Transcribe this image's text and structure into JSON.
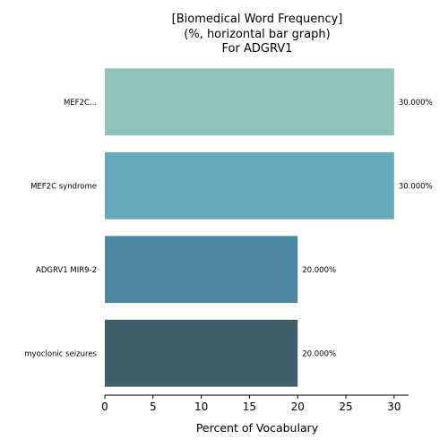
{
  "chart_data": {
    "type": "bar",
    "orientation": "horizontal",
    "title_lines": [
      "[Biomedical Word Frequency]",
      "(%, horizontal bar graph)",
      "For ADGRV1"
    ],
    "categories": [
      "MEF2C...",
      "MEF2C syndrome",
      "ADGRV1 MIR9-2",
      "myoclonic seizures"
    ],
    "values": [
      30,
      30,
      20,
      20
    ],
    "value_labels": [
      "30.000%",
      "30.000%",
      "20.000%",
      "20.000%"
    ],
    "bar_colors": [
      "#8fc2b9",
      "#66a9ba",
      "#4d88a1",
      "#3e5e69"
    ],
    "xlabel": "Percent of Vocabulary",
    "ylabel": "",
    "xlim": [
      0,
      31.5
    ],
    "xticks": [
      0,
      5,
      10,
      15,
      20,
      25,
      30
    ],
    "grid": false,
    "legend": "none"
  }
}
